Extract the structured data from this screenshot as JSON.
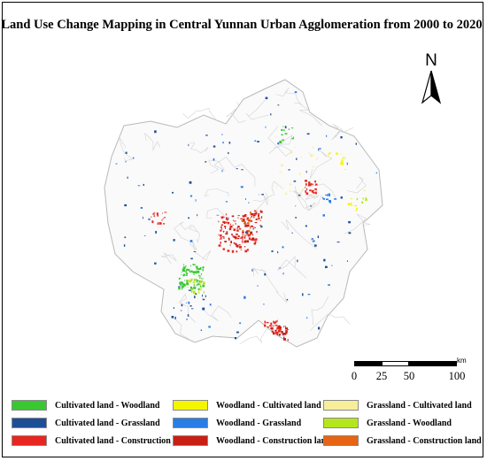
{
  "title": "Land Use Change Mapping in Central Yunnan Urban Agglomeration from 2000 to 2020",
  "north_arrow": {
    "label": "N",
    "icon": "north-arrow-icon"
  },
  "scale_bar": {
    "unit": "km",
    "ticks": [
      "0",
      "25",
      "50",
      "100"
    ]
  },
  "legend": [
    {
      "label": "Cultivated land - Woodland",
      "color": "#3ac832"
    },
    {
      "label": "Woodland - Cultivated land",
      "color": "#f5f500"
    },
    {
      "label": "Grassland - Cultivated land",
      "color": "#f8ee9a"
    },
    {
      "label": "Cultivated land - Grassland",
      "color": "#1e4f96"
    },
    {
      "label": "Woodland - Grassland",
      "color": "#2b7de6"
    },
    {
      "label": "Grassland - Woodland",
      "color": "#b5e61d"
    },
    {
      "label": "Cultivated land - Construction land",
      "color": "#e8261e"
    },
    {
      "label": "Woodland - Construction land",
      "color": "#c81e14"
    },
    {
      "label": "Grassland - Construction land",
      "color": "#e66414"
    }
  ]
}
